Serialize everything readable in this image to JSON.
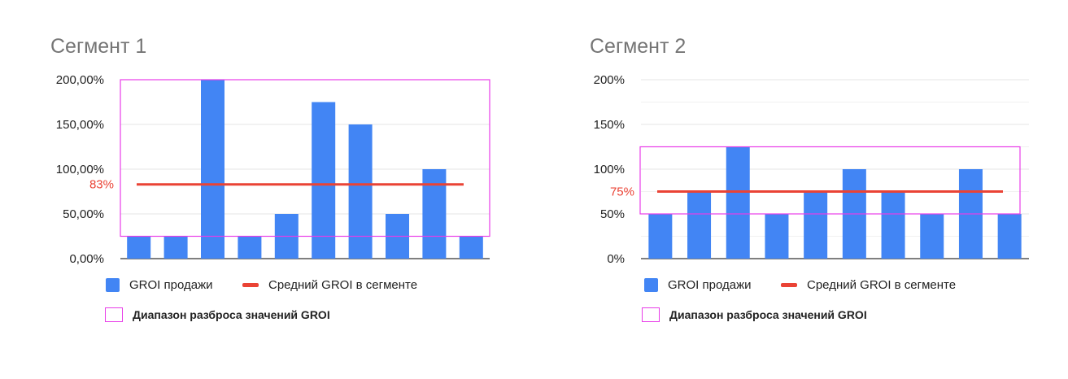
{
  "colors": {
    "bar": "#4285f4",
    "avg_line": "#ea4335",
    "range_box": "#e83ce8",
    "grid": "#e6e6e6",
    "axis": "#333333",
    "avg_label": "#ea4335"
  },
  "legend": {
    "bars": "GROI продажи",
    "avg": "Средний GROI в сегменте",
    "range": "Диапазон разброса значений GROI"
  },
  "chart_data": [
    {
      "type": "bar",
      "title": "Сегмент 1",
      "xlabel": "",
      "ylabel": "",
      "ylim": [
        0,
        2.0
      ],
      "yticks": [
        0,
        0.5,
        1.0,
        1.5,
        2.0
      ],
      "ytick_labels": [
        "0,00%",
        "50,00%",
        "100,00%",
        "150,00%",
        "200,00%"
      ],
      "minor_gridlines": false,
      "categories": [
        "",
        "",
        "",
        "",
        "",
        "",
        "",
        "",
        "",
        ""
      ],
      "series": [
        {
          "name": "GROI продажи",
          "values": [
            0.25,
            0.25,
            2.0,
            0.25,
            0.5,
            1.75,
            1.5,
            0.5,
            1.0,
            0.25
          ]
        }
      ],
      "average": {
        "name": "Средний GROI в сегменте",
        "value": 0.83,
        "label": "83%"
      },
      "range": {
        "name": "Диапазон разброса значений GROI",
        "min": 0.25,
        "max": 2.0
      },
      "legend_position": "bottom-left"
    },
    {
      "type": "bar",
      "title": "Сегмент 2",
      "xlabel": "",
      "ylabel": "",
      "ylim": [
        0,
        2.0
      ],
      "yticks": [
        0,
        0.5,
        1.0,
        1.5,
        2.0
      ],
      "ytick_labels": [
        "0%",
        "50%",
        "100%",
        "150%",
        "200%"
      ],
      "minor_gridlines": true,
      "categories": [
        "",
        "",
        "",
        "",
        "",
        "",
        "",
        "",
        "",
        ""
      ],
      "series": [
        {
          "name": "GROI продажи",
          "values": [
            0.5,
            0.75,
            1.25,
            0.5,
            0.75,
            1.0,
            0.75,
            0.5,
            1.0,
            0.5
          ]
        }
      ],
      "average": {
        "name": "Средний GROI в сегменте",
        "value": 0.75,
        "label": "75%"
      },
      "range": {
        "name": "Диапазон разброса значений GROI",
        "min": 0.5,
        "max": 1.25
      },
      "legend_position": "bottom-left"
    }
  ]
}
